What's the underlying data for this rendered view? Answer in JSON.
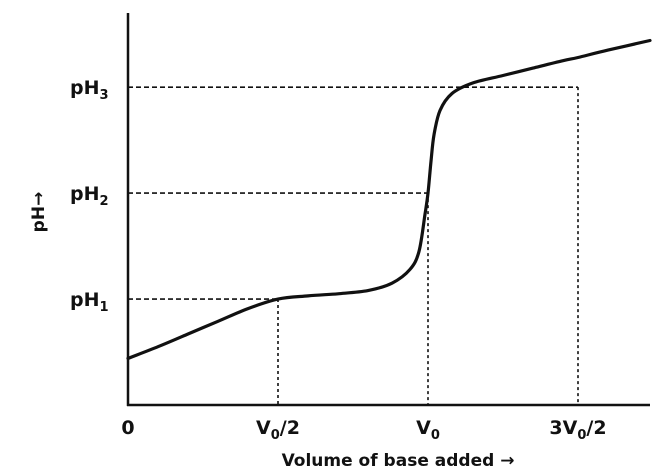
{
  "chart_data": {
    "type": "line",
    "title": "",
    "xlabel": "Volume of base added",
    "ylabel": "pH",
    "axis_arrow": "→",
    "x_ticks": [
      {
        "value": 0,
        "base": "0",
        "sub": "",
        "after": ""
      },
      {
        "value": 0.5,
        "base": "V",
        "sub": "0",
        "after": "/2"
      },
      {
        "value": 1,
        "base": "V",
        "sub": "0",
        "after": ""
      },
      {
        "value": 1.5,
        "base": "3V",
        "sub": "0",
        "after": "/2"
      }
    ],
    "y_ticks": [
      {
        "value": 1,
        "base": "pH",
        "sub": "1"
      },
      {
        "value": 2,
        "base": "pH",
        "sub": "2"
      },
      {
        "value": 3,
        "base": "pH",
        "sub": "3"
      }
    ],
    "xlim": [
      0,
      1.74
    ],
    "ylim": [
      0,
      3.7
    ],
    "grid": false,
    "series": [
      {
        "color": "#111111",
        "x": [
          0,
          0.1,
          0.2,
          0.3,
          0.4,
          0.5,
          0.6,
          0.7,
          0.8,
          0.88,
          0.94,
          0.97,
          0.99,
          1.0,
          1.01,
          1.02,
          1.04,
          1.08,
          1.15,
          1.25,
          1.35,
          1.45,
          1.5,
          1.6,
          1.74
        ],
        "y": [
          0.44,
          0.55,
          0.67,
          0.79,
          0.91,
          1.0,
          1.03,
          1.05,
          1.08,
          1.15,
          1.28,
          1.45,
          1.8,
          2.0,
          2.3,
          2.55,
          2.78,
          2.94,
          3.04,
          3.11,
          3.18,
          3.25,
          3.28,
          3.35,
          3.44
        ]
      }
    ],
    "reference_lines": [
      {
        "x": 0.5,
        "y": 1
      },
      {
        "x": 1,
        "y": 2
      },
      {
        "x": 1.5,
        "y": 3
      }
    ]
  }
}
